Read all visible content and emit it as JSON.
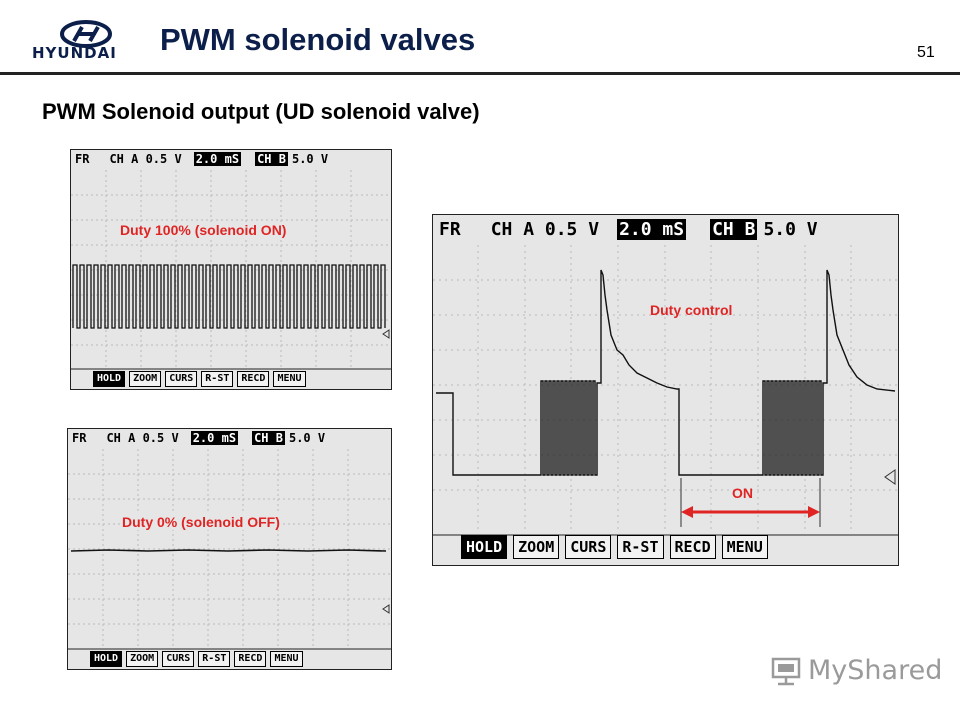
{
  "header": {
    "logo_text": "HYUNDAI",
    "title": "PWM solenoid valves",
    "page_number": "51"
  },
  "subtitle": "PWM Solenoid output (UD solenoid valve)",
  "scope": {
    "fr": "FR",
    "ch_a": "CH A 0.5 V",
    "time": "2.0 mS",
    "ch_b": "CH B",
    "ch_b_val": "5.0 V",
    "buttons": [
      "HOLD",
      "ZOOM",
      "CURS",
      "R-ST",
      "RECD",
      "MENU"
    ]
  },
  "annotations": {
    "duty100": "Duty 100% (solenoid ON)",
    "duty0": "Duty 0% (solenoid OFF)",
    "duty_control": "Duty control",
    "on": "ON"
  },
  "colors": {
    "annotation": "#e02424",
    "title": "#0b1f4a"
  },
  "watermark": "MyShared"
}
